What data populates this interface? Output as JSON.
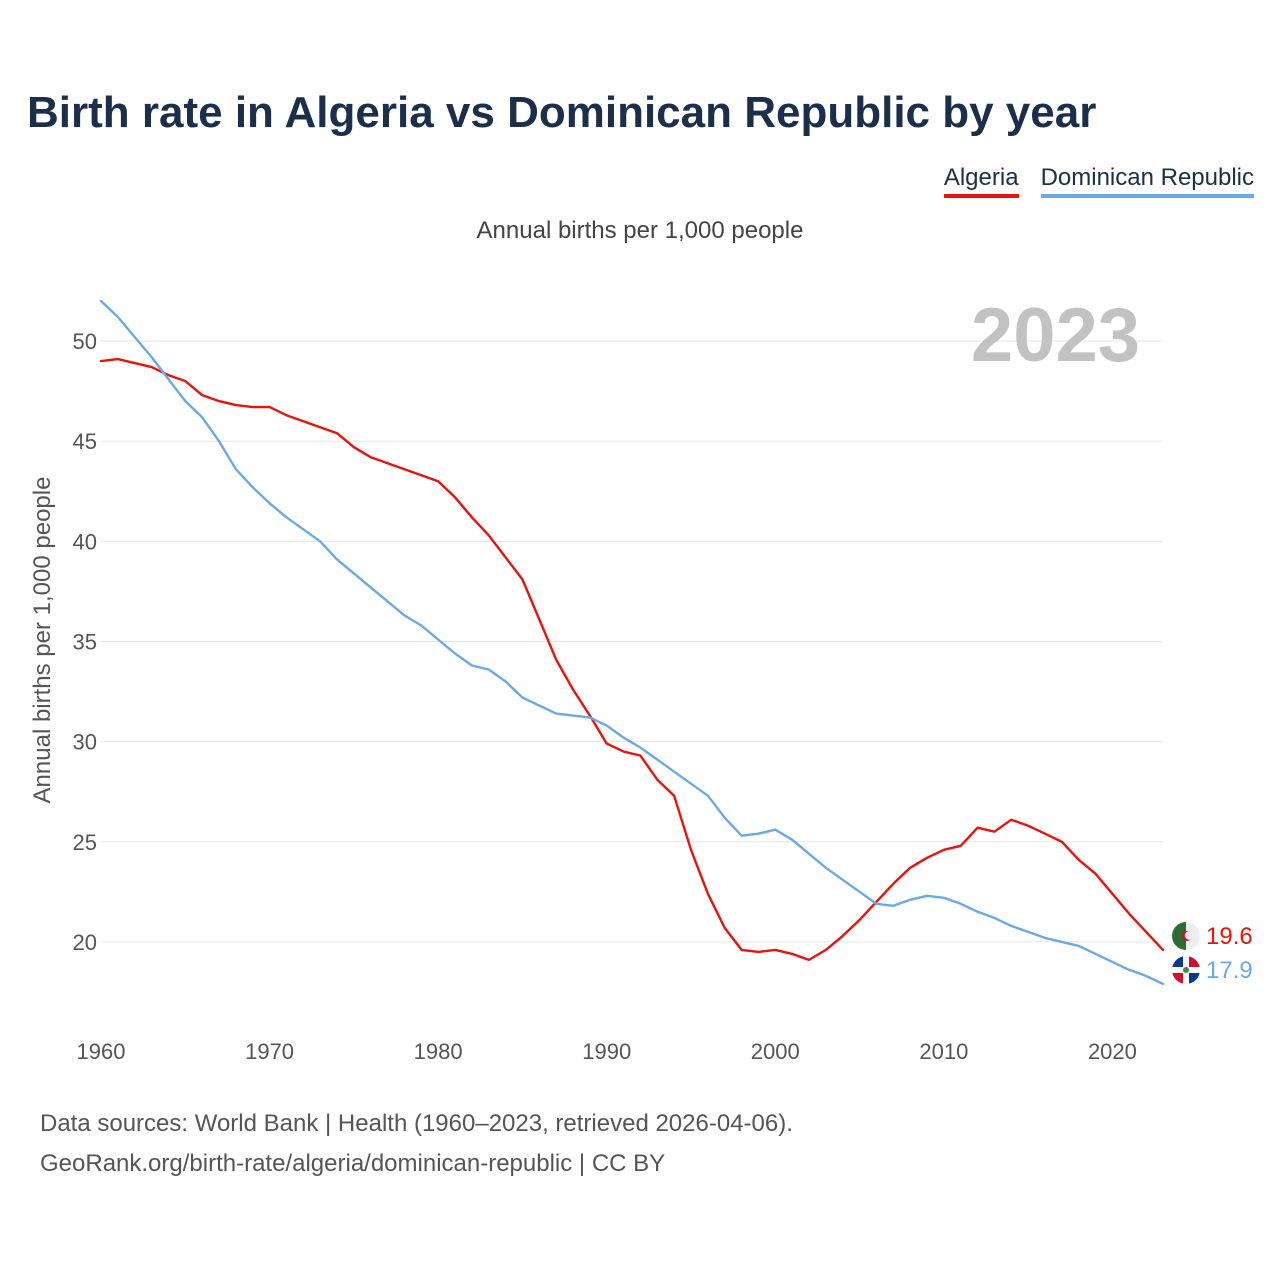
{
  "header": {
    "title": "Birth rate in Algeria vs Dominican Republic by year",
    "subtitle": "Annual births per 1,000 people"
  },
  "legend": {
    "algeria": "Algeria",
    "dominican_republic": "Dominican Republic"
  },
  "footer": {
    "line1": "Data sources: World Bank | Health (1960–2023, retrieved 2026-04-06).",
    "line2": "GeoRank.org/birth-rate/algeria/dominican-republic | CC BY"
  },
  "colors": {
    "algeria": "#e8130c",
    "dominican_republic": "#6aa9e6",
    "grid": "#e6e6e6",
    "title": "#1b2e4a"
  },
  "chart_data": {
    "type": "line",
    "title": "Birth rate in Algeria vs Dominican Republic by year",
    "ylabel": "Annual births per 1,000 people",
    "xlabel": "",
    "current_year_label": "2023",
    "xlim": [
      1960,
      2023
    ],
    "ylim": [
      16,
      52
    ],
    "xticks": [
      1960,
      1970,
      1980,
      1990,
      2000,
      2010,
      2020
    ],
    "yticks": [
      20,
      25,
      30,
      35,
      40,
      45,
      50
    ],
    "legend_position": "top-right",
    "grid": true,
    "x": [
      1960,
      1961,
      1962,
      1963,
      1964,
      1965,
      1966,
      1967,
      1968,
      1969,
      1970,
      1971,
      1972,
      1973,
      1974,
      1975,
      1976,
      1977,
      1978,
      1979,
      1980,
      1981,
      1982,
      1983,
      1984,
      1985,
      1986,
      1987,
      1988,
      1989,
      1990,
      1991,
      1992,
      1993,
      1994,
      1995,
      1996,
      1997,
      1998,
      1999,
      2000,
      2001,
      2002,
      2003,
      2004,
      2005,
      2006,
      2007,
      2008,
      2009,
      2010,
      2011,
      2012,
      2013,
      2014,
      2015,
      2016,
      2017,
      2018,
      2019,
      2020,
      2021,
      2022,
      2023
    ],
    "series": [
      {
        "name": "Algeria",
        "color": "#e8130c",
        "end_label": "19.6",
        "values": [
          49.0,
          49.1,
          48.9,
          48.7,
          48.3,
          48.0,
          47.3,
          47.0,
          46.8,
          46.7,
          46.7,
          46.3,
          46.0,
          45.7,
          45.4,
          44.7,
          44.2,
          43.9,
          43.6,
          43.3,
          43.0,
          42.2,
          41.2,
          40.3,
          39.2,
          38.1,
          36.1,
          34.1,
          32.6,
          31.3,
          29.9,
          29.5,
          29.3,
          28.1,
          27.3,
          24.6,
          22.4,
          20.7,
          19.6,
          19.5,
          19.6,
          19.4,
          19.1,
          19.6,
          20.3,
          21.1,
          22.0,
          22.9,
          23.7,
          24.2,
          24.6,
          24.8,
          25.7,
          25.5,
          26.1,
          25.8,
          25.4,
          25.0,
          24.1,
          23.4,
          22.4,
          21.4,
          20.5,
          19.6
        ]
      },
      {
        "name": "Dominican Republic",
        "color": "#6aa9e6",
        "end_label": "17.9",
        "values": [
          52.0,
          51.2,
          50.2,
          49.2,
          48.1,
          47.0,
          46.2,
          45.0,
          43.6,
          42.7,
          41.9,
          41.2,
          40.6,
          40.0,
          39.1,
          38.4,
          37.7,
          37.0,
          36.3,
          35.8,
          35.1,
          34.4,
          33.8,
          33.6,
          33.0,
          32.2,
          31.8,
          31.4,
          31.3,
          31.2,
          30.8,
          30.2,
          29.7,
          29.1,
          28.5,
          27.9,
          27.3,
          26.2,
          25.3,
          25.4,
          25.6,
          25.1,
          24.4,
          23.7,
          23.1,
          22.5,
          21.9,
          21.8,
          22.1,
          22.3,
          22.2,
          21.9,
          21.5,
          21.2,
          20.8,
          20.5,
          20.2,
          20.0,
          19.8,
          19.4,
          19.0,
          18.6,
          18.3,
          17.9
        ]
      }
    ]
  }
}
